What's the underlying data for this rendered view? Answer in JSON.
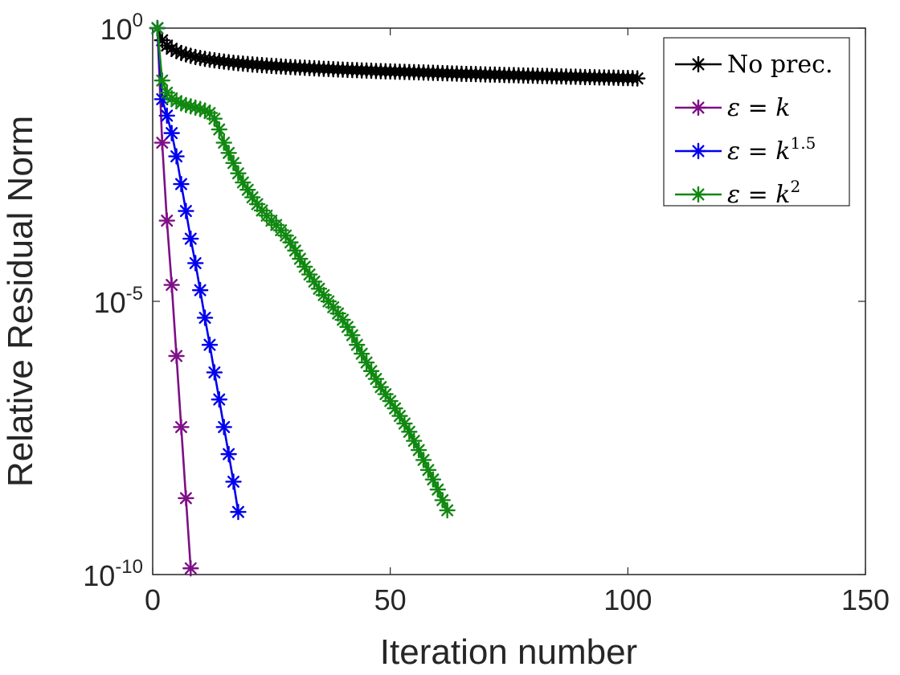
{
  "chart_data": {
    "type": "line",
    "xlabel": "Iteration number",
    "ylabel": "Relative Residual Norm",
    "xlim": [
      0,
      150
    ],
    "ylim": [
      1e-10,
      1
    ],
    "yscale": "log",
    "grid": false,
    "legend_position": "top-right",
    "x_ticks": [
      {
        "value": 0,
        "label": "0"
      },
      {
        "value": 50,
        "label": "50"
      },
      {
        "value": 100,
        "label": "100"
      },
      {
        "value": 150,
        "label": "150"
      }
    ],
    "y_ticks": [
      {
        "value": 1,
        "base": "10",
        "exp": "0"
      },
      {
        "value": 1e-05,
        "base": "10",
        "exp": "-5"
      },
      {
        "value": 1e-10,
        "base": "10",
        "exp": "-10"
      }
    ],
    "series": [
      {
        "name": "No prec.",
        "legend_main": "No prec.",
        "legend_sup": "",
        "legend_math": false,
        "color": "#000000",
        "x": [
          1,
          2,
          3,
          4,
          5,
          6,
          7,
          8,
          9,
          10,
          11,
          12,
          13,
          14,
          15,
          16,
          17,
          18,
          19,
          20,
          21,
          22,
          23,
          24,
          25,
          26,
          27,
          28,
          29,
          30,
          31,
          32,
          33,
          34,
          35,
          36,
          37,
          38,
          39,
          40,
          41,
          42,
          43,
          44,
          45,
          46,
          47,
          48,
          49,
          50,
          51,
          52,
          53,
          54,
          55,
          56,
          57,
          58,
          59,
          60,
          61,
          62,
          63,
          64,
          65,
          66,
          67,
          68,
          69,
          70,
          71,
          72,
          73,
          74,
          75,
          76,
          77,
          78,
          79,
          80,
          81,
          82,
          83,
          84,
          85,
          86,
          87,
          88,
          89,
          90,
          91,
          92,
          93,
          94,
          95,
          96,
          97,
          98,
          99,
          100,
          101,
          102
        ],
        "y": [
          1.0,
          0.6,
          0.48,
          0.42,
          0.38,
          0.35,
          0.33,
          0.311,
          0.296,
          0.284,
          0.274,
          0.265,
          0.257,
          0.25,
          0.244,
          0.238,
          0.233,
          0.228,
          0.224,
          0.22,
          0.216,
          0.213,
          0.21,
          0.207,
          0.204,
          0.201,
          0.199,
          0.196,
          0.194,
          0.192,
          0.19,
          0.188,
          0.186,
          0.184,
          0.182,
          0.18,
          0.179,
          0.177,
          0.175,
          0.174,
          0.172,
          0.171,
          0.17,
          0.168,
          0.167,
          0.166,
          0.164,
          0.163,
          0.162,
          0.161,
          0.16,
          0.159,
          0.158,
          0.157,
          0.156,
          0.155,
          0.154,
          0.153,
          0.152,
          0.151,
          0.15,
          0.149,
          0.148,
          0.147,
          0.146,
          0.145,
          0.145,
          0.144,
          0.143,
          0.142,
          0.141,
          0.141,
          0.14,
          0.139,
          0.138,
          0.138,
          0.137,
          0.136,
          0.135,
          0.135,
          0.134,
          0.133,
          0.133,
          0.132,
          0.131,
          0.131,
          0.13,
          0.129,
          0.129,
          0.128,
          0.127,
          0.127,
          0.126,
          0.125,
          0.125,
          0.124,
          0.124,
          0.123,
          0.122,
          0.122,
          0.121,
          0.12
        ]
      },
      {
        "name": "ε = k",
        "legend_main": "ε = k",
        "legend_sup": "",
        "legend_math": true,
        "color": "#7e0f86",
        "x": [
          1,
          2,
          3,
          4,
          5,
          6,
          7,
          8
        ],
        "y": [
          1.0,
          0.008,
          0.0003,
          2e-05,
          1e-06,
          5e-08,
          2.5e-09,
          1.3e-10
        ]
      },
      {
        "name": "ε = k^1.5",
        "legend_main": "ε = k",
        "legend_sup": "1.5",
        "legend_math": true,
        "color": "#0000ee",
        "x": [
          1,
          2,
          3,
          4,
          5,
          6,
          7,
          8,
          9,
          10,
          11,
          12,
          13,
          14,
          15,
          16,
          17,
          18
        ],
        "y": [
          1.0,
          0.05,
          0.025,
          0.012,
          0.0045,
          0.0014,
          0.00045,
          0.00014,
          5e-05,
          1.6e-05,
          5e-06,
          1.6e-06,
          5e-07,
          1.6e-07,
          5e-08,
          1.6e-08,
          5e-09,
          1.4e-09
        ]
      },
      {
        "name": "ε = k^2",
        "legend_main": "ε = k",
        "legend_sup": "2",
        "legend_math": true,
        "color": "#118811",
        "x": [
          1,
          2,
          3,
          4,
          5,
          6,
          7,
          8,
          9,
          10,
          11,
          12,
          13,
          14,
          15,
          16,
          17,
          18,
          19,
          20,
          21,
          22,
          23,
          24,
          25,
          26,
          27,
          28,
          29,
          30,
          31,
          32,
          33,
          34,
          35,
          36,
          37,
          38,
          39,
          40,
          41,
          42,
          43,
          44,
          45,
          46,
          47,
          48,
          49,
          50,
          51,
          52,
          53,
          54,
          55,
          56,
          57,
          58,
          59,
          60,
          61,
          62
        ],
        "y": [
          1.0,
          0.11,
          0.066,
          0.052,
          0.046,
          0.042,
          0.039,
          0.037,
          0.035,
          0.033,
          0.031,
          0.028,
          0.022,
          0.014,
          0.008,
          0.0052,
          0.0034,
          0.0022,
          0.0015,
          0.0011,
          0.0008,
          0.0006,
          0.00046,
          0.00037,
          0.0003,
          0.00025,
          0.0002,
          0.00016,
          0.00012,
          8.5e-05,
          6e-05,
          4.3e-05,
          3.1e-05,
          2.3e-05,
          1.7e-05,
          1.3e-05,
          1e-05,
          7.8e-06,
          6e-06,
          4.6e-06,
          3.4e-06,
          2.4e-06,
          1.6e-06,
          1.1e-06,
          7.6e-07,
          5.3e-07,
          3.8e-07,
          2.7e-07,
          2e-07,
          1.5e-07,
          1.1e-07,
          8e-08,
          5.8e-08,
          4.1e-08,
          2.8e-08,
          1.9e-08,
          1.25e-08,
          8.2e-09,
          5.5e-09,
          3.6e-09,
          2.3e-09,
          1.5e-09
        ]
      }
    ]
  }
}
